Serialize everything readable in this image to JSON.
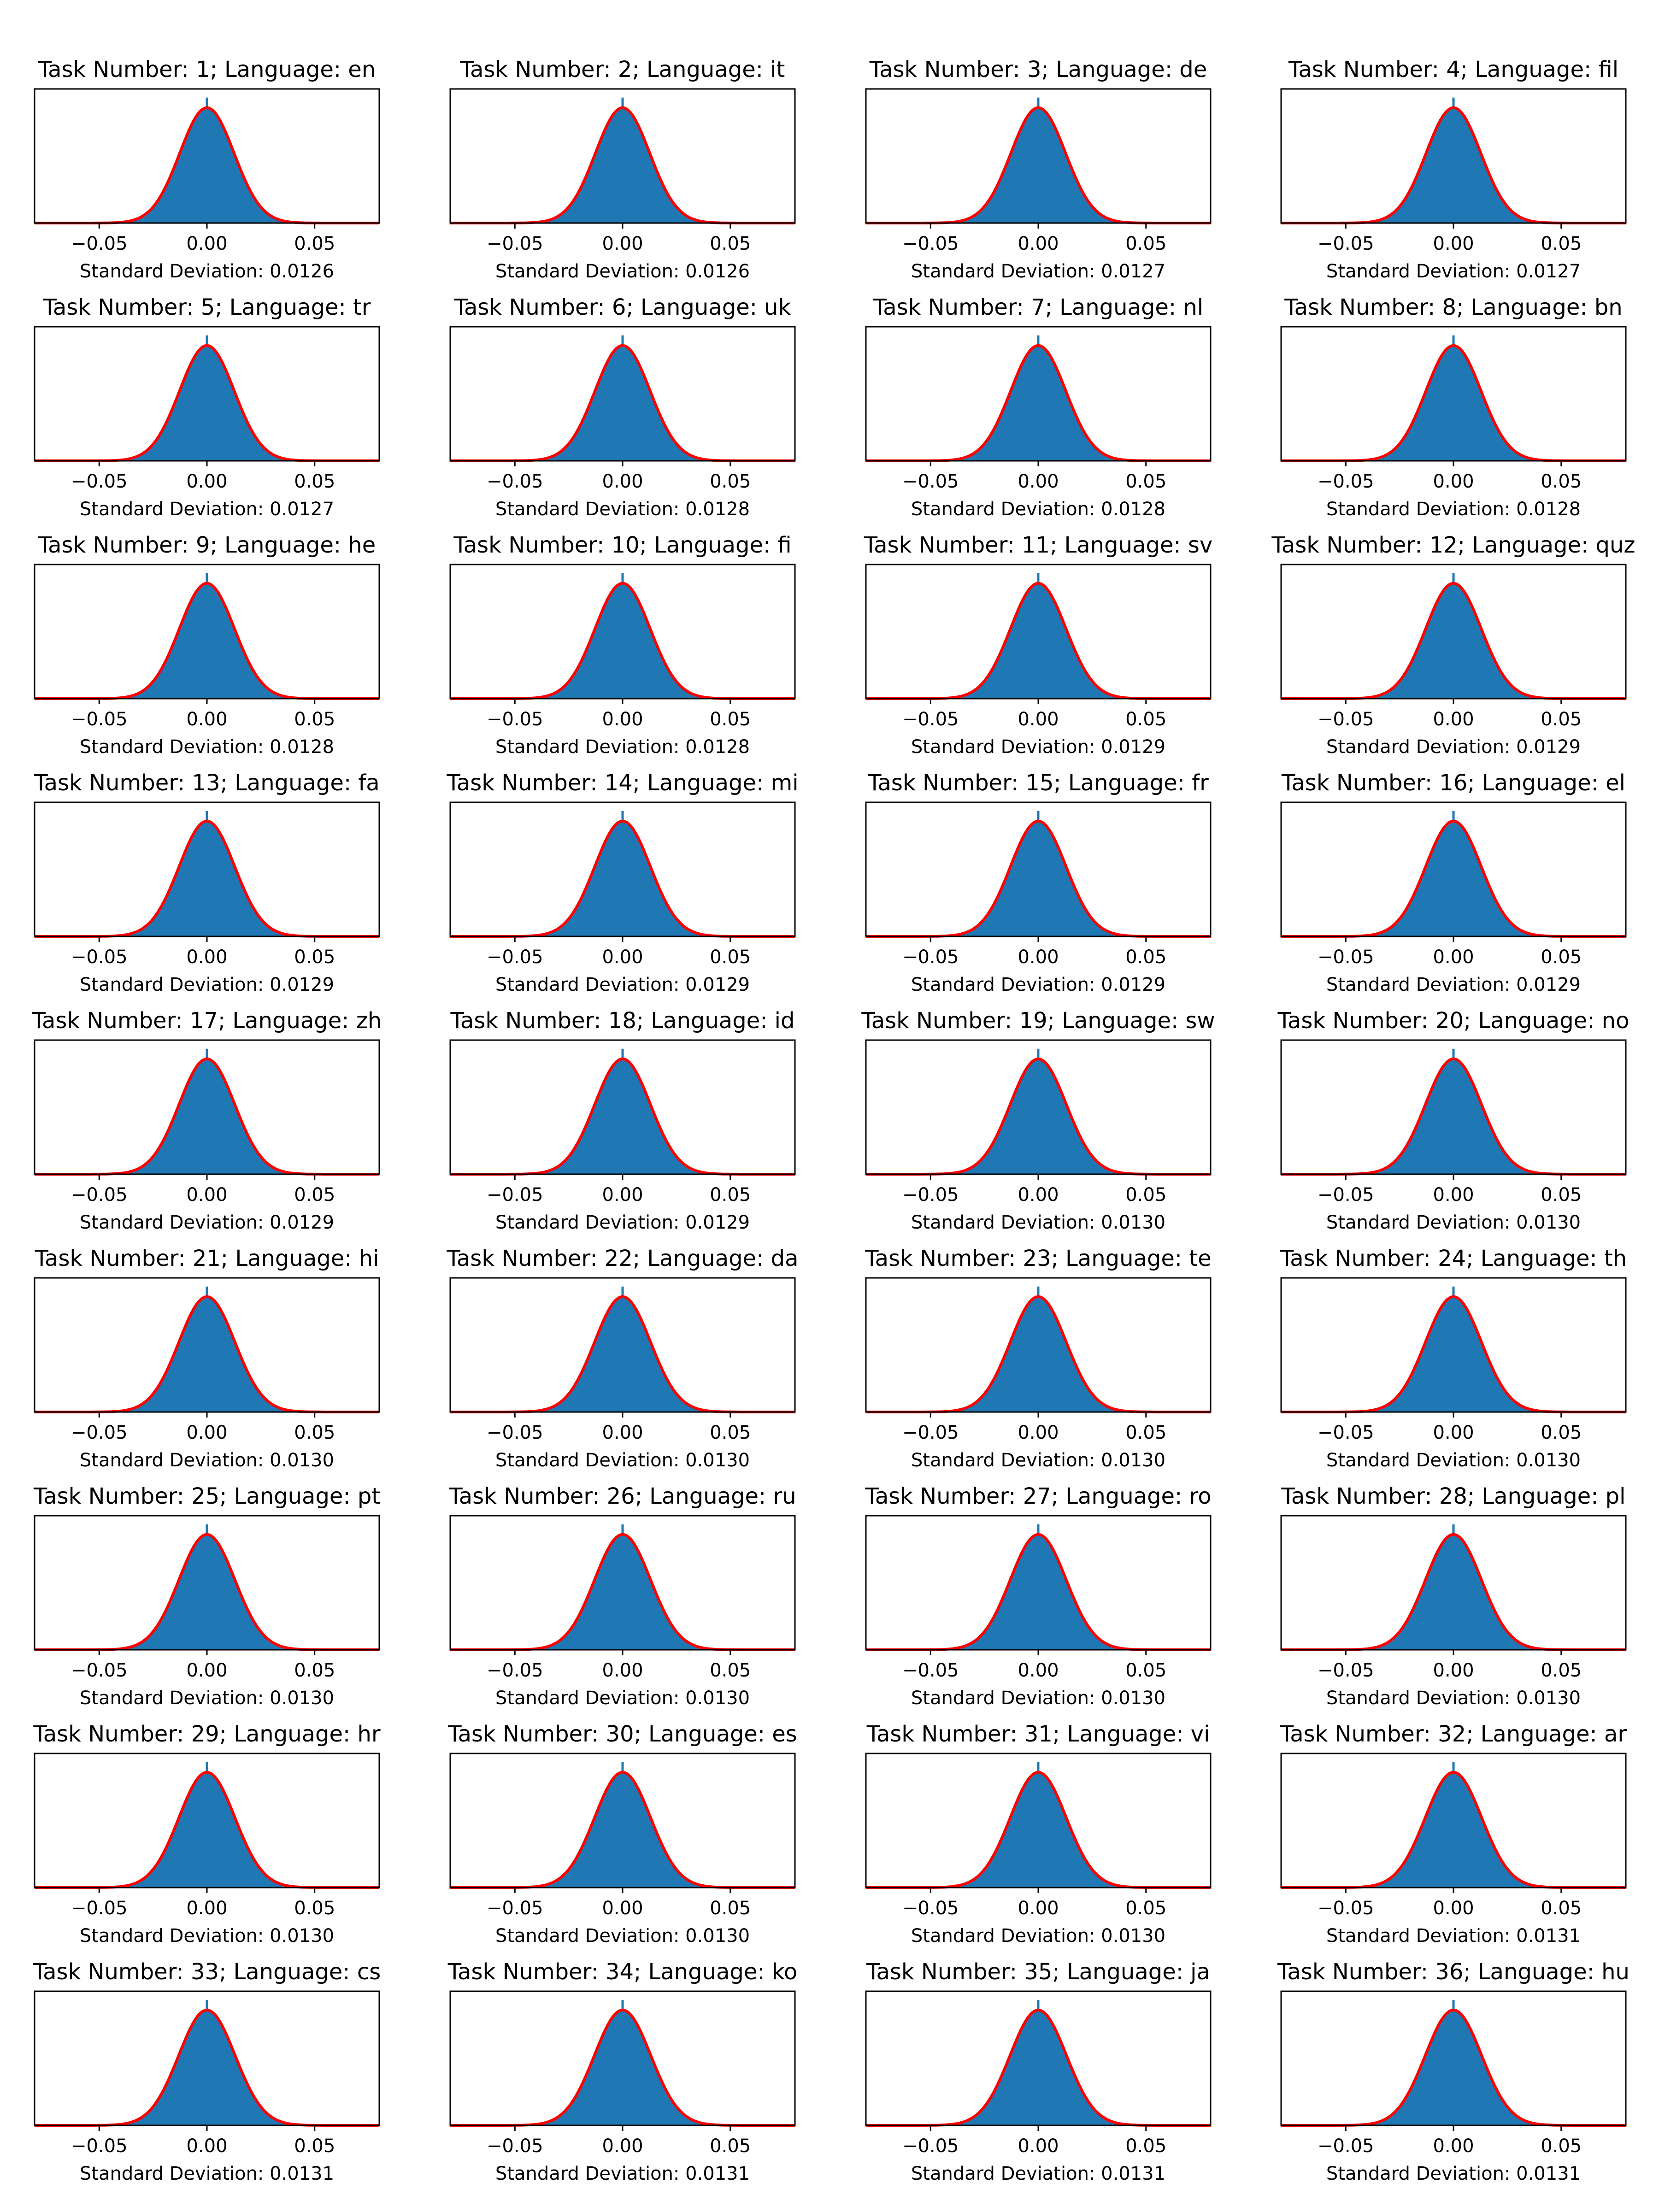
{
  "colors": {
    "histogram_fill": "#1f77b4",
    "fit_curve": "#ff0000",
    "axes": "#000000",
    "background": "#ffffff"
  },
  "chart_data": {
    "type": "histogram-grid",
    "rows": 9,
    "cols": 4,
    "curve": "normal",
    "grid": false,
    "xlim": [
      -0.08,
      0.08
    ],
    "xticks": [
      -0.05,
      0.0,
      0.05
    ],
    "xtick_labels": [
      "−0.05",
      "0.00",
      "0.05"
    ],
    "mean": 0.0,
    "panels": [
      {
        "task": 1,
        "language": "en",
        "title": "Task Number: 1; Language: en",
        "std": 0.0126,
        "xlabel": "Standard Deviation: 0.0126"
      },
      {
        "task": 2,
        "language": "it",
        "title": "Task Number: 2; Language: it",
        "std": 0.0126,
        "xlabel": "Standard Deviation: 0.0126"
      },
      {
        "task": 3,
        "language": "de",
        "title": "Task Number: 3; Language: de",
        "std": 0.0127,
        "xlabel": "Standard Deviation: 0.0127"
      },
      {
        "task": 4,
        "language": "fil",
        "title": "Task Number: 4; Language: fil",
        "std": 0.0127,
        "xlabel": "Standard Deviation: 0.0127"
      },
      {
        "task": 5,
        "language": "tr",
        "title": "Task Number: 5; Language: tr",
        "std": 0.0127,
        "xlabel": "Standard Deviation: 0.0127"
      },
      {
        "task": 6,
        "language": "uk",
        "title": "Task Number: 6; Language: uk",
        "std": 0.0128,
        "xlabel": "Standard Deviation: 0.0128"
      },
      {
        "task": 7,
        "language": "nl",
        "title": "Task Number: 7; Language: nl",
        "std": 0.0128,
        "xlabel": "Standard Deviation: 0.0128"
      },
      {
        "task": 8,
        "language": "bn",
        "title": "Task Number: 8; Language: bn",
        "std": 0.0128,
        "xlabel": "Standard Deviation: 0.0128"
      },
      {
        "task": 9,
        "language": "he",
        "title": "Task Number: 9; Language: he",
        "std": 0.0128,
        "xlabel": "Standard Deviation: 0.0128"
      },
      {
        "task": 10,
        "language": "fi",
        "title": "Task Number: 10; Language: fi",
        "std": 0.0128,
        "xlabel": "Standard Deviation: 0.0128"
      },
      {
        "task": 11,
        "language": "sv",
        "title": "Task Number: 11; Language: sv",
        "std": 0.0129,
        "xlabel": "Standard Deviation: 0.0129"
      },
      {
        "task": 12,
        "language": "quz",
        "title": "Task Number: 12; Language: quz",
        "std": 0.0129,
        "xlabel": "Standard Deviation: 0.0129"
      },
      {
        "task": 13,
        "language": "fa",
        "title": "Task Number: 13; Language: fa",
        "std": 0.0129,
        "xlabel": "Standard Deviation: 0.0129"
      },
      {
        "task": 14,
        "language": "mi",
        "title": "Task Number: 14; Language: mi",
        "std": 0.0129,
        "xlabel": "Standard Deviation: 0.0129"
      },
      {
        "task": 15,
        "language": "fr",
        "title": "Task Number: 15; Language: fr",
        "std": 0.0129,
        "xlabel": "Standard Deviation: 0.0129"
      },
      {
        "task": 16,
        "language": "el",
        "title": "Task Number: 16; Language: el",
        "std": 0.0129,
        "xlabel": "Standard Deviation: 0.0129"
      },
      {
        "task": 17,
        "language": "zh",
        "title": "Task Number: 17; Language: zh",
        "std": 0.0129,
        "xlabel": "Standard Deviation: 0.0129"
      },
      {
        "task": 18,
        "language": "id",
        "title": "Task Number: 18; Language: id",
        "std": 0.0129,
        "xlabel": "Standard Deviation: 0.0129"
      },
      {
        "task": 19,
        "language": "sw",
        "title": "Task Number: 19; Language: sw",
        "std": 0.013,
        "xlabel": "Standard Deviation: 0.0130"
      },
      {
        "task": 20,
        "language": "no",
        "title": "Task Number: 20; Language: no",
        "std": 0.013,
        "xlabel": "Standard Deviation: 0.0130"
      },
      {
        "task": 21,
        "language": "hi",
        "title": "Task Number: 21; Language: hi",
        "std": 0.013,
        "xlabel": "Standard Deviation: 0.0130"
      },
      {
        "task": 22,
        "language": "da",
        "title": "Task Number: 22; Language: da",
        "std": 0.013,
        "xlabel": "Standard Deviation: 0.0130"
      },
      {
        "task": 23,
        "language": "te",
        "title": "Task Number: 23; Language: te",
        "std": 0.013,
        "xlabel": "Standard Deviation: 0.0130"
      },
      {
        "task": 24,
        "language": "th",
        "title": "Task Number: 24; Language: th",
        "std": 0.013,
        "xlabel": "Standard Deviation: 0.0130"
      },
      {
        "task": 25,
        "language": "pt",
        "title": "Task Number: 25; Language: pt",
        "std": 0.013,
        "xlabel": "Standard Deviation: 0.0130"
      },
      {
        "task": 26,
        "language": "ru",
        "title": "Task Number: 26; Language: ru",
        "std": 0.013,
        "xlabel": "Standard Deviation: 0.0130"
      },
      {
        "task": 27,
        "language": "ro",
        "title": "Task Number: 27; Language: ro",
        "std": 0.013,
        "xlabel": "Standard Deviation: 0.0130"
      },
      {
        "task": 28,
        "language": "pl",
        "title": "Task Number: 28; Language: pl",
        "std": 0.013,
        "xlabel": "Standard Deviation: 0.0130"
      },
      {
        "task": 29,
        "language": "hr",
        "title": "Task Number: 29; Language: hr",
        "std": 0.013,
        "xlabel": "Standard Deviation: 0.0130"
      },
      {
        "task": 30,
        "language": "es",
        "title": "Task Number: 30; Language: es",
        "std": 0.013,
        "xlabel": "Standard Deviation: 0.0130"
      },
      {
        "task": 31,
        "language": "vi",
        "title": "Task Number: 31; Language: vi",
        "std": 0.013,
        "xlabel": "Standard Deviation: 0.0130"
      },
      {
        "task": 32,
        "language": "ar",
        "title": "Task Number: 32; Language: ar",
        "std": 0.0131,
        "xlabel": "Standard Deviation: 0.0131"
      },
      {
        "task": 33,
        "language": "cs",
        "title": "Task Number: 33; Language: cs",
        "std": 0.0131,
        "xlabel": "Standard Deviation: 0.0131"
      },
      {
        "task": 34,
        "language": "ko",
        "title": "Task Number: 34; Language: ko",
        "std": 0.0131,
        "xlabel": "Standard Deviation: 0.0131"
      },
      {
        "task": 35,
        "language": "ja",
        "title": "Task Number: 35; Language: ja",
        "std": 0.0131,
        "xlabel": "Standard Deviation: 0.0131"
      },
      {
        "task": 36,
        "language": "hu",
        "title": "Task Number: 36; Language: hu",
        "std": 0.0131,
        "xlabel": "Standard Deviation: 0.0131"
      }
    ]
  }
}
